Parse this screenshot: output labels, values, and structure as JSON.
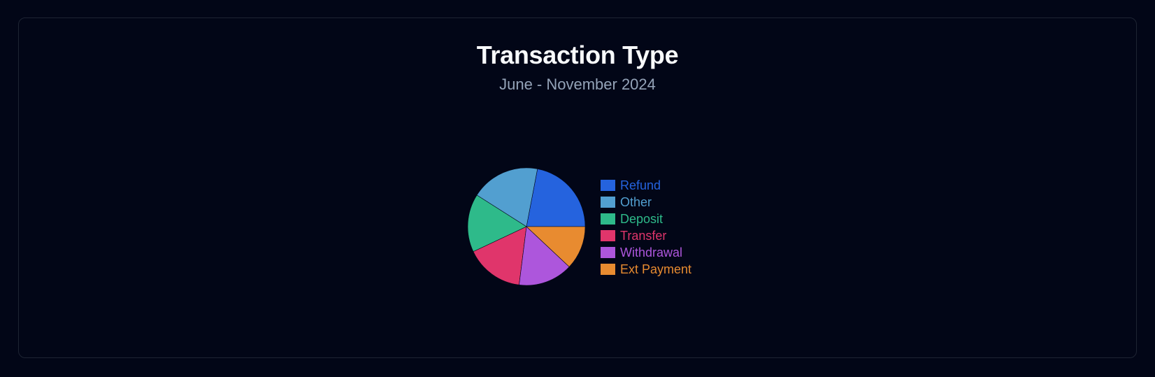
{
  "header": {
    "title": "Transaction Type",
    "subtitle": "June - November 2024"
  },
  "chart_data": {
    "type": "pie",
    "title": "Transaction Type",
    "subtitle": "June - November 2024",
    "legend_position": "right",
    "slices": [
      {
        "label": "Refund",
        "value": 22,
        "color": "#2563de"
      },
      {
        "label": "Other",
        "value": 19,
        "color": "#529fd0"
      },
      {
        "label": "Deposit",
        "value": 16,
        "color": "#2eba8a"
      },
      {
        "label": "Transfer",
        "value": 16,
        "color": "#e0356b"
      },
      {
        "label": "Withdrawal",
        "value": 15,
        "color": "#ad56dc"
      },
      {
        "label": "Ext Payment",
        "value": 12,
        "color": "#e88b30"
      }
    ]
  }
}
